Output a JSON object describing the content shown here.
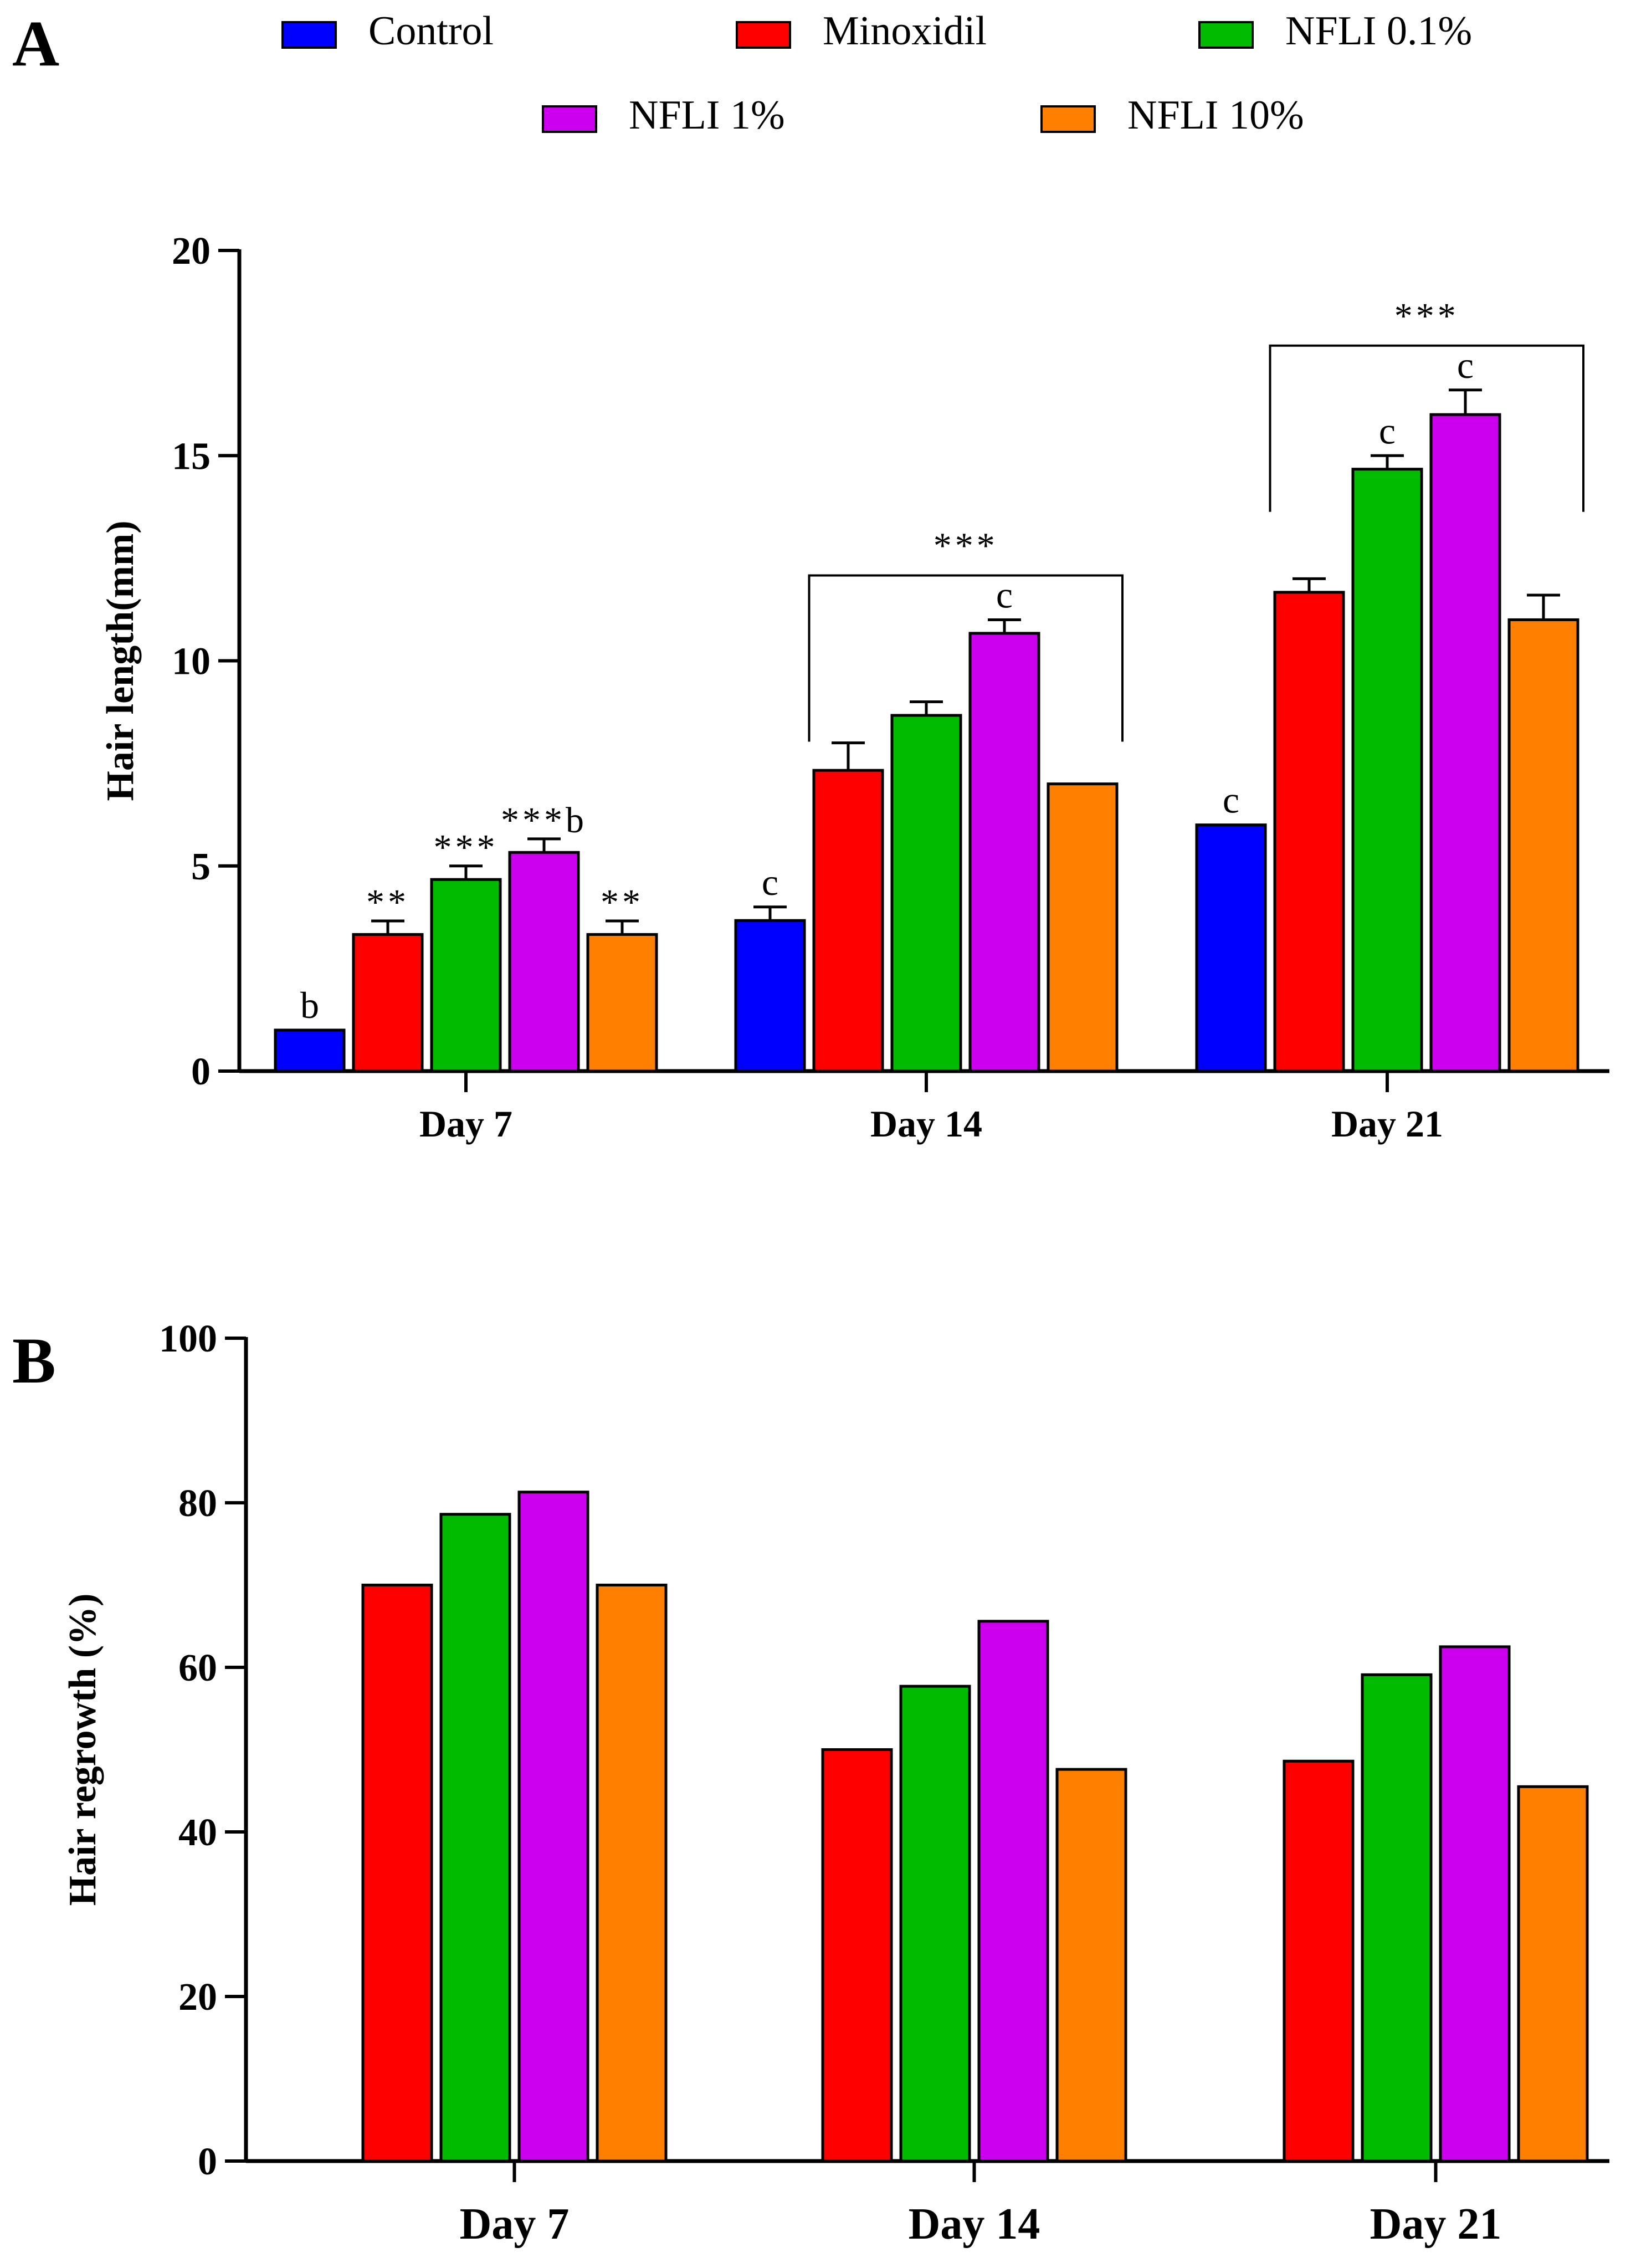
{
  "legend": [
    {
      "label": "Control",
      "color": "#0000ff"
    },
    {
      "label": "Minoxidil",
      "color": "#ff0000"
    },
    {
      "label": "NFLI 0.1%",
      "color": "#00bb00"
    },
    {
      "label": "NFLI 1%",
      "color": "#cc00ee"
    },
    {
      "label": "NFLI 10%",
      "color": "#ff8000"
    }
  ],
  "chart_data": [
    {
      "panel": "A",
      "type": "bar",
      "ylabel": "Hair length(mm)",
      "xlabel": "",
      "categories": [
        "Day 7",
        "Day 14",
        "Day 21"
      ],
      "ylim": [
        0,
        20
      ],
      "yticks": [
        0,
        5,
        10,
        15,
        20
      ],
      "series": [
        {
          "name": "Control",
          "color": "#0000ff",
          "values": [
            1.0,
            3.67,
            6.0
          ],
          "errors": [
            0,
            0.33,
            0
          ],
          "labels": [
            "b",
            "c",
            "c"
          ]
        },
        {
          "name": "Minoxidil",
          "color": "#ff0000",
          "values": [
            3.33,
            7.33,
            11.67
          ],
          "errors": [
            0.33,
            0.67,
            0.33
          ],
          "labels": [
            "**",
            "",
            ""
          ]
        },
        {
          "name": "NFLI 0.1%",
          "color": "#00bb00",
          "values": [
            4.67,
            8.67,
            14.67
          ],
          "errors": [
            0.33,
            0.33,
            0.33
          ],
          "labels": [
            "***",
            "",
            "c"
          ]
        },
        {
          "name": "NFLI 1%",
          "color": "#cc00ee",
          "values": [
            5.33,
            10.67,
            16.0
          ],
          "errors": [
            0.33,
            0.33,
            0.6
          ],
          "labels": [
            "***b",
            "c",
            "c"
          ]
        },
        {
          "name": "NFLI 10%",
          "color": "#ff8000",
          "values": [
            3.33,
            7.0,
            11.0
          ],
          "errors": [
            0.33,
            0,
            0.6
          ],
          "labels": [
            "**",
            "",
            ""
          ]
        }
      ],
      "annotations": [
        {
          "group": "Day 14",
          "text": "***"
        },
        {
          "group": "Day 21",
          "text": "***"
        }
      ]
    },
    {
      "panel": "B",
      "type": "bar",
      "ylabel": "Hair regrowth (%)",
      "xlabel": "",
      "categories": [
        "Day 7",
        "Day 14",
        "Day 21"
      ],
      "ylim": [
        0,
        100
      ],
      "yticks": [
        0,
        20,
        40,
        60,
        80,
        100
      ],
      "series": [
        {
          "name": "Minoxidil",
          "color": "#ff0000",
          "values": [
            70,
            50,
            48.6
          ]
        },
        {
          "name": "NFLI 0.1%",
          "color": "#00bb00",
          "values": [
            78.6,
            57.7,
            59.1
          ]
        },
        {
          "name": "NFLI 1%",
          "color": "#cc00ee",
          "values": [
            81.3,
            65.6,
            62.5
          ]
        },
        {
          "name": "NFLI 10%",
          "color": "#ff8000",
          "values": [
            70,
            47.6,
            45.5
          ]
        }
      ]
    }
  ]
}
